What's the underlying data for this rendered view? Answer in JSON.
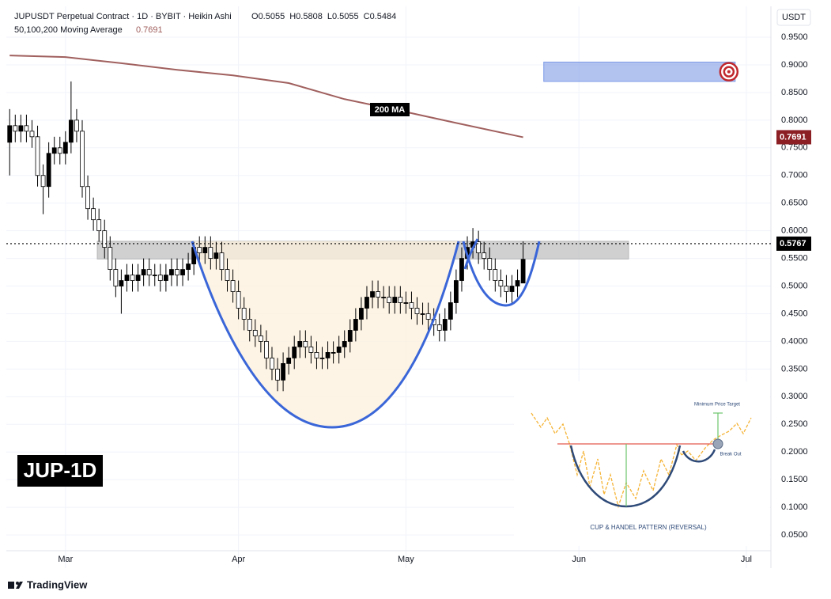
{
  "chart_data": {
    "type": "candlestick",
    "title": "JUPUSDT Perpetual Contract · 1D · BYBIT · Heikin Ashi",
    "ohlc_letters": [
      "O",
      "H",
      "L",
      "C"
    ],
    "ma_legend": "50,100,200 Moving Average",
    "axis_unit": "USDT",
    "badge": "JUP-1D",
    "watermark": "TradingView",
    "up_color": "#000000",
    "down_color": "#ffffff",
    "open": [
      0.76,
      0.79,
      0.78,
      0.79,
      0.78,
      0.77,
      0.7,
      0.68,
      0.74,
      0.75,
      0.74,
      0.76,
      0.8,
      0.78,
      0.68,
      0.64,
      0.62,
      0.6,
      0.57,
      0.53,
      0.5,
      0.51,
      0.52,
      0.51,
      0.52,
      0.53,
      0.52,
      0.52,
      0.51,
      0.52,
      0.53,
      0.52,
      0.53,
      0.54,
      0.57,
      0.56,
      0.57,
      0.55,
      0.56,
      0.53,
      0.51,
      0.49,
      0.46,
      0.44,
      0.42,
      0.41,
      0.4,
      0.37,
      0.35,
      0.33,
      0.36,
      0.37,
      0.39,
      0.4,
      0.39,
      0.38,
      0.37,
      0.37,
      0.38,
      0.38,
      0.39,
      0.4,
      0.42,
      0.44,
      0.46,
      0.48,
      0.49,
      0.48,
      0.48,
      0.47,
      0.48,
      0.47,
      0.47,
      0.46,
      0.45,
      0.45,
      0.44,
      0.43,
      0.42,
      0.44,
      0.47,
      0.51,
      0.55,
      0.57,
      0.58,
      0.56,
      0.55,
      0.53,
      0.51,
      0.5,
      0.49,
      0.5,
      0.5055
    ],
    "high": [
      0.82,
      0.81,
      0.81,
      0.81,
      0.8,
      0.79,
      0.72,
      0.76,
      0.77,
      0.77,
      0.78,
      0.87,
      0.82,
      0.8,
      0.7,
      0.66,
      0.64,
      0.62,
      0.59,
      0.55,
      0.53,
      0.54,
      0.54,
      0.54,
      0.55,
      0.55,
      0.54,
      0.54,
      0.54,
      0.55,
      0.55,
      0.55,
      0.56,
      0.58,
      0.59,
      0.59,
      0.59,
      0.58,
      0.58,
      0.55,
      0.53,
      0.51,
      0.48,
      0.46,
      0.44,
      0.43,
      0.42,
      0.39,
      0.37,
      0.38,
      0.39,
      0.41,
      0.42,
      0.42,
      0.41,
      0.4,
      0.39,
      0.4,
      0.4,
      0.41,
      0.42,
      0.44,
      0.46,
      0.48,
      0.5,
      0.51,
      0.51,
      0.5,
      0.5,
      0.5,
      0.5,
      0.49,
      0.49,
      0.48,
      0.47,
      0.47,
      0.46,
      0.45,
      0.46,
      0.49,
      0.53,
      0.57,
      0.59,
      0.605,
      0.6,
      0.58,
      0.57,
      0.55,
      0.53,
      0.52,
      0.52,
      0.53,
      0.5808
    ],
    "low": [
      0.7,
      0.76,
      0.76,
      0.76,
      0.75,
      0.68,
      0.63,
      0.66,
      0.72,
      0.72,
      0.72,
      0.74,
      0.76,
      0.66,
      0.62,
      0.6,
      0.58,
      0.55,
      0.51,
      0.48,
      0.45,
      0.49,
      0.49,
      0.49,
      0.5,
      0.5,
      0.5,
      0.49,
      0.49,
      0.5,
      0.5,
      0.5,
      0.51,
      0.52,
      0.54,
      0.54,
      0.53,
      0.53,
      0.51,
      0.49,
      0.47,
      0.44,
      0.42,
      0.4,
      0.39,
      0.38,
      0.35,
      0.33,
      0.31,
      0.31,
      0.34,
      0.35,
      0.37,
      0.37,
      0.36,
      0.35,
      0.35,
      0.35,
      0.36,
      0.36,
      0.37,
      0.38,
      0.4,
      0.42,
      0.44,
      0.46,
      0.46,
      0.46,
      0.45,
      0.45,
      0.45,
      0.45,
      0.44,
      0.43,
      0.43,
      0.42,
      0.41,
      0.4,
      0.4,
      0.42,
      0.45,
      0.49,
      0.53,
      0.55,
      0.54,
      0.53,
      0.51,
      0.49,
      0.48,
      0.47,
      0.47,
      0.48,
      0.5055
    ],
    "close": [
      0.79,
      0.78,
      0.79,
      0.78,
      0.77,
      0.7,
      0.68,
      0.74,
      0.75,
      0.74,
      0.76,
      0.8,
      0.78,
      0.68,
      0.64,
      0.62,
      0.6,
      0.57,
      0.53,
      0.5,
      0.51,
      0.52,
      0.51,
      0.52,
      0.53,
      0.52,
      0.52,
      0.51,
      0.52,
      0.53,
      0.52,
      0.53,
      0.54,
      0.57,
      0.56,
      0.57,
      0.55,
      0.56,
      0.53,
      0.51,
      0.49,
      0.46,
      0.44,
      0.42,
      0.41,
      0.4,
      0.37,
      0.35,
      0.33,
      0.36,
      0.37,
      0.39,
      0.4,
      0.39,
      0.38,
      0.37,
      0.37,
      0.38,
      0.38,
      0.39,
      0.4,
      0.42,
      0.44,
      0.46,
      0.48,
      0.49,
      0.48,
      0.48,
      0.47,
      0.48,
      0.47,
      0.47,
      0.46,
      0.45,
      0.45,
      0.44,
      0.43,
      0.42,
      0.44,
      0.47,
      0.51,
      0.55,
      0.57,
      0.58,
      0.56,
      0.55,
      0.53,
      0.51,
      0.5,
      0.49,
      0.5,
      0.51,
      0.5484
    ],
    "ma": {
      "name": "200 MA",
      "color": "#a0605e",
      "x": [
        0,
        10,
        20,
        30,
        40,
        50,
        60,
        70,
        80,
        92
      ],
      "values": [
        0.917,
        0.914,
        0.903,
        0.891,
        0.881,
        0.867,
        0.838,
        0.817,
        0.795,
        0.7691
      ]
    },
    "price_line": 0.5767,
    "resistance_zone": {
      "color": "#b7b7b7",
      "x": [
        15.7,
        110.9
      ],
      "y": [
        0.549,
        0.581
      ]
    },
    "target_zone": {
      "color": "#7e9be6",
      "x": [
        95.7,
        130
      ],
      "y": [
        0.87,
        0.905
      ]
    },
    "xlim": [
      -0.6,
      136.4
    ],
    "ylim": [
      -0.01,
      1.0058
    ],
    "xticks": [
      {
        "value": 10,
        "label": "Mar"
      },
      {
        "value": 41,
        "label": "Apr"
      },
      {
        "value": 71,
        "label": "May"
      },
      {
        "value": 102,
        "label": "Jun"
      },
      {
        "value": 132,
        "label": "Jul"
      }
    ],
    "yticks": [
      {
        "value": 0.95,
        "label": "0.9500"
      },
      {
        "value": 0.9,
        "label": "0.9000"
      },
      {
        "value": 0.85,
        "label": "0.8500"
      },
      {
        "value": 0.8,
        "label": "0.8000"
      },
      {
        "value": 0.75,
        "label": "0.7500"
      },
      {
        "value": 0.7,
        "label": "0.7000"
      },
      {
        "value": 0.65,
        "label": "0.6500"
      },
      {
        "value": 0.6,
        "label": "0.6000"
      },
      {
        "value": 0.55,
        "label": "0.5500"
      },
      {
        "value": 0.5,
        "label": "0.5000"
      },
      {
        "value": 0.45,
        "label": "0.4500"
      },
      {
        "value": 0.4,
        "label": "0.4000"
      },
      {
        "value": 0.35,
        "label": "0.3500"
      },
      {
        "value": 0.3,
        "label": "0.3000"
      },
      {
        "value": 0.25,
        "label": "0.2500"
      },
      {
        "value": 0.2,
        "label": "0.2000"
      },
      {
        "value": 0.15,
        "label": "0.1500"
      },
      {
        "value": 0.1,
        "label": "0.1000"
      },
      {
        "value": 0.05,
        "label": "0.0500"
      }
    ],
    "grid": true,
    "inset": {
      "title": "CUP & HANDEL PATTERN (REVERSAL)",
      "target_label": "Minimum Price Target",
      "breakout_label": "Break Out"
    }
  }
}
